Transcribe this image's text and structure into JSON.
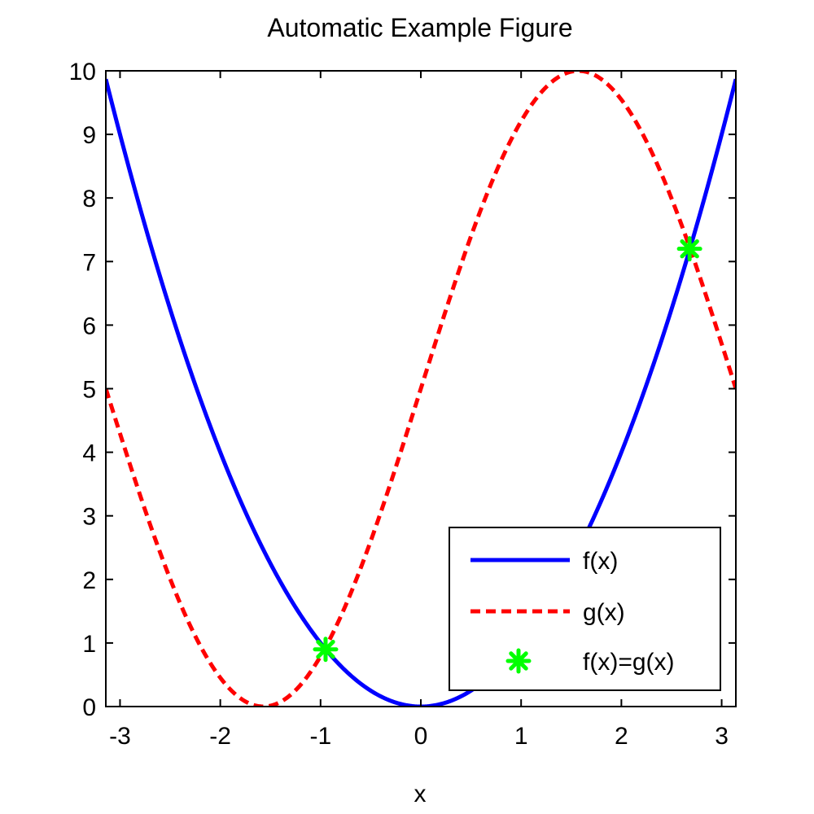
{
  "chart_data": {
    "type": "line",
    "title": "Automatic Example Figure",
    "xlabel": "x",
    "ylabel": "",
    "xlim": [
      -3.14159,
      3.14159
    ],
    "ylim": [
      0,
      10
    ],
    "xticks": [
      -3,
      -2,
      -1,
      0,
      1,
      2,
      3
    ],
    "yticks": [
      0,
      1,
      2,
      3,
      4,
      5,
      6,
      7,
      8,
      9,
      10
    ],
    "grid": false,
    "legend_position": "bottom-right",
    "series": [
      {
        "name": "f(x)",
        "color": "#0000ff",
        "style": "solid",
        "x": [
          -3.1416,
          -2.8,
          -2.5,
          -2.2,
          -2.0,
          -1.8,
          -1.5,
          -1.2,
          -1.0,
          -0.8,
          -0.5,
          -0.2,
          0.0,
          0.2,
          0.5,
          0.8,
          1.0,
          1.2,
          1.5,
          1.8,
          2.0,
          2.2,
          2.5,
          2.8,
          3.1416
        ],
        "y": [
          9.87,
          7.84,
          6.25,
          4.84,
          4.0,
          3.24,
          2.25,
          1.44,
          1.0,
          0.64,
          0.25,
          0.04,
          0.0,
          0.04,
          0.25,
          0.64,
          1.0,
          1.44,
          2.25,
          3.24,
          4.0,
          4.84,
          6.25,
          7.84,
          9.87
        ]
      },
      {
        "name": "g(x)",
        "color": "#ff0000",
        "style": "dashed",
        "x": [
          -3.1416,
          -2.8,
          -2.5,
          -2.2,
          -2.0,
          -1.8,
          -1.5708,
          -1.4,
          -1.2,
          -1.0,
          -0.8,
          -0.5,
          -0.2,
          0.0,
          0.2,
          0.5,
          0.8,
          1.0,
          1.2,
          1.5708,
          1.8,
          2.0,
          2.2,
          2.5,
          2.8,
          3.1416
        ],
        "y": [
          5.0,
          3.33,
          2.01,
          0.92,
          0.45,
          0.13,
          0.0,
          0.07,
          0.34,
          0.79,
          1.41,
          2.6,
          4.01,
          5.0,
          5.99,
          7.4,
          8.59,
          9.21,
          9.66,
          10.0,
          9.87,
          9.55,
          9.08,
          7.99,
          6.67,
          5.0
        ]
      },
      {
        "name": "f(x)=g(x)",
        "color": "#00ff00",
        "style": "marker-asterisk",
        "x": [
          -0.95,
          2.68
        ],
        "y": [
          0.9,
          7.2
        ]
      }
    ]
  }
}
